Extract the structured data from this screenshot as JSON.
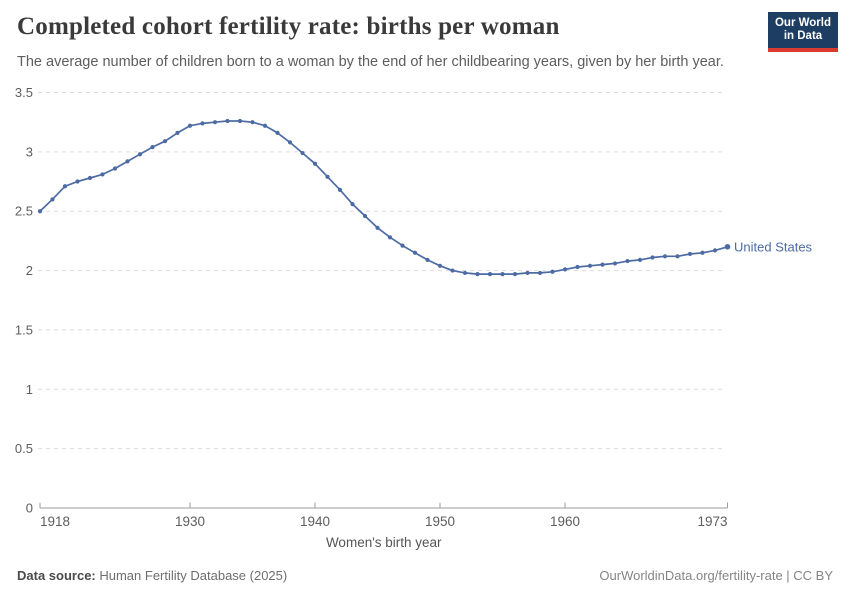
{
  "header": {
    "title": "Completed cohort fertility rate: births per woman",
    "subtitle": "The average number of children born to a woman by the end of her childbearing years, given by her birth year.",
    "logo": {
      "line1": "Our World",
      "line2": "in Data",
      "bg_color": "#1d3d63",
      "stripe_color": "#d93a2d"
    }
  },
  "chart_data": {
    "type": "line",
    "title": "Completed cohort fertility rate: births per woman",
    "xlabel": "Women's birth year",
    "ylabel": "",
    "grid": "horizontal-dashed",
    "legend_position": "end-of-line-label",
    "ylim": [
      0,
      3.5
    ],
    "yticks": [
      0,
      0.5,
      1,
      1.5,
      2,
      2.5,
      3,
      3.5
    ],
    "xticks": [
      1918,
      1930,
      1940,
      1950,
      1960,
      1973
    ],
    "x": [
      1918,
      1919,
      1920,
      1921,
      1922,
      1923,
      1924,
      1925,
      1926,
      1927,
      1928,
      1929,
      1930,
      1931,
      1932,
      1933,
      1934,
      1935,
      1936,
      1937,
      1938,
      1939,
      1940,
      1941,
      1942,
      1943,
      1944,
      1945,
      1946,
      1947,
      1948,
      1949,
      1950,
      1951,
      1952,
      1953,
      1954,
      1955,
      1956,
      1957,
      1958,
      1959,
      1960,
      1961,
      1962,
      1963,
      1964,
      1965,
      1966,
      1967,
      1968,
      1969,
      1970,
      1971,
      1972,
      1973
    ],
    "series": [
      {
        "name": "United States",
        "color": "#4d6ba3",
        "values": [
          2.5,
          2.6,
          2.71,
          2.75,
          2.78,
          2.81,
          2.86,
          2.92,
          2.98,
          3.04,
          3.09,
          3.16,
          3.22,
          3.24,
          3.25,
          3.26,
          3.26,
          3.25,
          3.22,
          3.16,
          3.08,
          2.99,
          2.9,
          2.79,
          2.68,
          2.56,
          2.46,
          2.36,
          2.28,
          2.21,
          2.15,
          2.09,
          2.04,
          2.0,
          1.98,
          1.97,
          1.97,
          1.97,
          1.97,
          1.98,
          1.98,
          1.99,
          2.01,
          2.03,
          2.04,
          2.05,
          2.06,
          2.08,
          2.09,
          2.11,
          2.12,
          2.12,
          2.14,
          2.15,
          2.17,
          2.2
        ]
      }
    ],
    "axis_colors": {
      "gridline": "#dcdcdc",
      "baseline": "#9c9c9c",
      "tick_label": "#5e5e5e",
      "axis_title": "#555555"
    }
  },
  "footer": {
    "source_label": "Data source:",
    "source_text": " Human Fertility Database (2025)",
    "credit": "OurWorldinData.org/fertility-rate | CC BY"
  }
}
